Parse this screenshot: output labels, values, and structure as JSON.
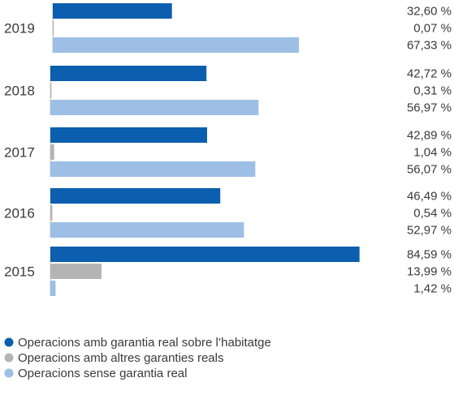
{
  "chart_data": {
    "type": "bar",
    "orientation": "horizontal",
    "categories": [
      "2019",
      "2018",
      "2017",
      "2016",
      "2015"
    ],
    "series": [
      {
        "name": "Operacions amb garantia real sobre l’habitatge",
        "color": "#0b5fae",
        "values": [
          32.6,
          42.72,
          42.89,
          46.49,
          84.59
        ],
        "labels": [
          "32,60 %",
          "42,72 %",
          "42,89 %",
          "46,49 %",
          "84,59 %"
        ]
      },
      {
        "name": "Operacions amb altres garanties reals",
        "color": "#b4b4b4",
        "values": [
          0.07,
          0.31,
          1.04,
          0.54,
          13.99
        ],
        "labels": [
          "0,07 %",
          "0,31 %",
          "1,04 %",
          "0,54 %",
          "13,99 %"
        ]
      },
      {
        "name": "Operacions sense garantia real",
        "color": "#9dbfe6",
        "values": [
          67.33,
          56.97,
          56.07,
          52.97,
          1.42
        ],
        "labels": [
          "67,33 %",
          "56,97 %",
          "56,07 %",
          "52,97 %",
          "1,42 %"
        ]
      }
    ],
    "xlim": [
      0,
      85
    ],
    "grid": false,
    "legend_position": "bottom-left"
  }
}
